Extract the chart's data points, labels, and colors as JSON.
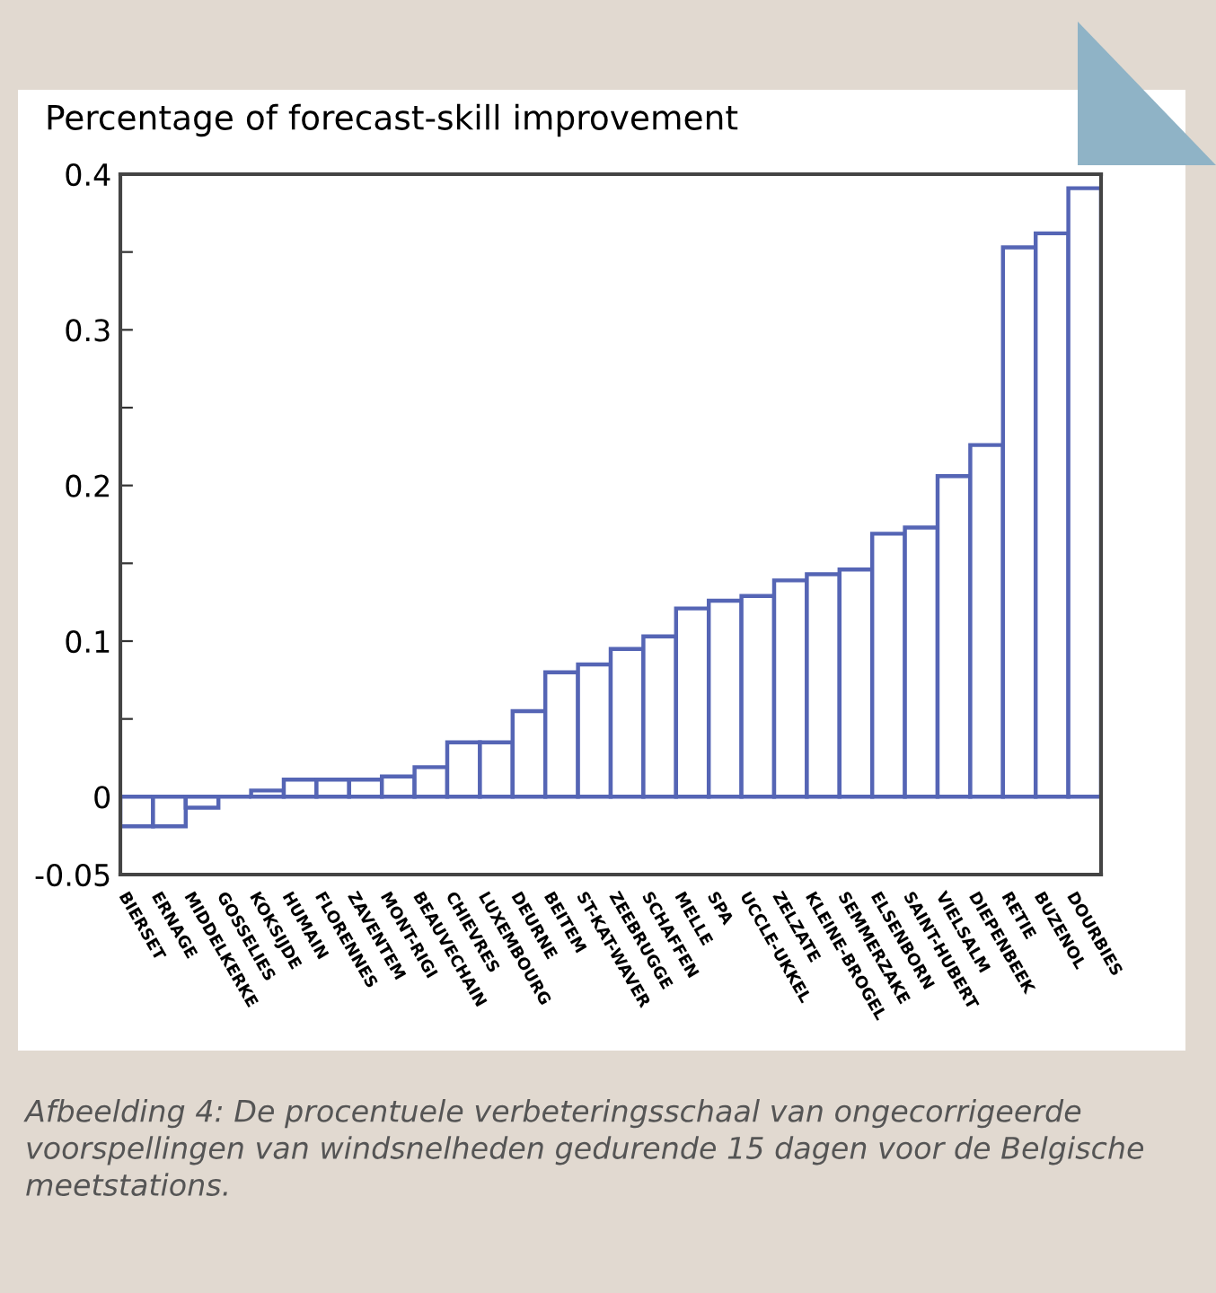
{
  "chart_data": {
    "type": "bar",
    "title": "Percentage of forecast-skill improvement",
    "categories": [
      "BIERSET",
      "ERNAGE",
      "MIDDELKERKE",
      "GOSSELIES",
      "KOKSIJDE",
      "HUMAIN",
      "FLORENNES",
      "ZAVENTEM",
      "MONT-RIGI",
      "BEAUVECHAIN",
      "CHIEVRES",
      "LUXEMBOURG",
      "DEURNE",
      "BEITEM",
      "ST-KAT-WAVER",
      "ZEEBRUGGE",
      "SCHAFFEN",
      "MELLE",
      "SPA",
      "UCCLE-UKKEL",
      "ZELZATE",
      "KLEINE-BROGEL",
      "SEMMERZAKE",
      "ELSENBORN",
      "SAINT-HUBERT",
      "VIELSALM",
      "DIEPENBEEK",
      "RETIE",
      "BUZENOL",
      "DOURBIES"
    ],
    "values": [
      -0.019,
      -0.019,
      -0.007,
      0,
      0.004,
      0.011,
      0.011,
      0.011,
      0.013,
      0.019,
      0.035,
      0.035,
      0.055,
      0.08,
      0.085,
      0.095,
      0.103,
      0.121,
      0.126,
      0.129,
      0.139,
      0.143,
      0.146,
      0.169,
      0.173,
      0.206,
      0.226,
      0.353,
      0.362,
      0.391
    ],
    "color": "#5565b5",
    "ylim": [
      -0.05,
      0.4
    ],
    "yticks": [
      {
        "value": -0.05,
        "label": "-0.05"
      },
      0,
      {
        "value": 0.05,
        "label": null
      },
      0.1,
      {
        "value": 0.15,
        "label": null
      },
      0.2,
      {
        "value": 0.25,
        "label": null
      },
      0.3,
      {
        "value": 0.35,
        "label": null
      },
      0.4
    ],
    "grid": false,
    "annotations": [
      "Afbeelding 4: De procentuele verbeteringsschaal van ongecorrigeerde voorspellingen van windsnelheden gedurende 15 dagen voor de Belgische meetstations."
    ]
  }
}
